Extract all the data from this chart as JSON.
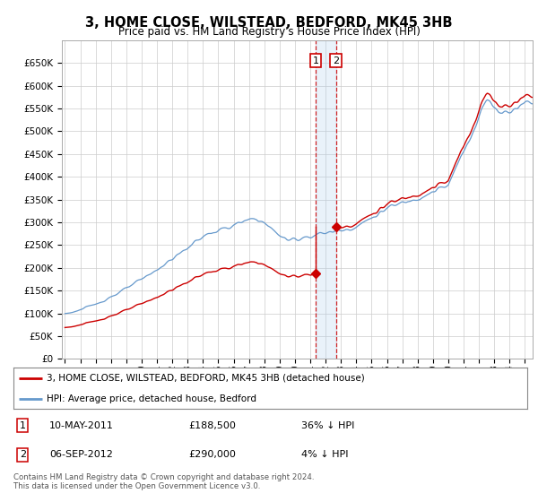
{
  "title": "3, HOME CLOSE, WILSTEAD, BEDFORD, MK45 3HB",
  "subtitle": "Price paid vs. HM Land Registry's House Price Index (HPI)",
  "ylim": [
    0,
    700000
  ],
  "yticks": [
    0,
    50000,
    100000,
    150000,
    200000,
    250000,
    300000,
    350000,
    400000,
    450000,
    500000,
    550000,
    600000,
    650000
  ],
  "xlim_start": 1994.8,
  "xlim_end": 2025.5,
  "legend_entries": [
    "3, HOME CLOSE, WILSTEAD, BEDFORD, MK45 3HB (detached house)",
    "HPI: Average price, detached house, Bedford"
  ],
  "legend_colors": [
    "#cc0000",
    "#6699cc"
  ],
  "transaction1_x": 2011.36,
  "transaction1_y": 188500,
  "transaction2_x": 2012.68,
  "transaction2_y": 290000,
  "shaded_region_color": "#aaccee",
  "shaded_alpha": 0.25,
  "footer_text": "Contains HM Land Registry data © Crown copyright and database right 2024.\nThis data is licensed under the Open Government Licence v3.0.",
  "table_rows": [
    {
      "label": "1",
      "date": "10-MAY-2011",
      "price": "£188,500",
      "hpi": "36% ↓ HPI"
    },
    {
      "label": "2",
      "date": "06-SEP-2012",
      "price": "£290,000",
      "hpi": "4% ↓ HPI"
    }
  ],
  "background_color": "#ffffff",
  "grid_color": "#cccccc",
  "plot_bg": "#ffffff"
}
